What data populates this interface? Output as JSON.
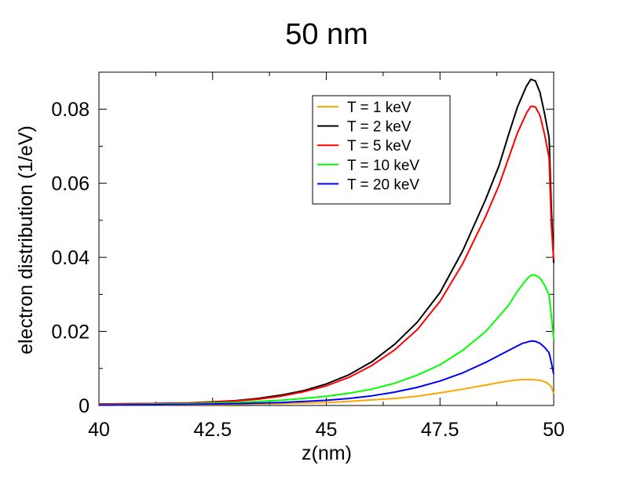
{
  "chart_data": {
    "type": "line",
    "title": "50 nm",
    "xlabel": "z(nm)",
    "ylabel": "electron distribution (1/eV)",
    "xlim": [
      40,
      50
    ],
    "ylim": [
      0,
      0.09
    ],
    "xticks": [
      {
        "value": 40,
        "label": "40"
      },
      {
        "value": 42.5,
        "label": "42.5"
      },
      {
        "value": 45,
        "label": "45"
      },
      {
        "value": 47.5,
        "label": "47.5"
      },
      {
        "value": 50,
        "label": "50"
      }
    ],
    "yticks": [
      {
        "value": 0,
        "label": "0"
      },
      {
        "value": 0.02,
        "label": "0.02"
      },
      {
        "value": 0.04,
        "label": "0.04"
      },
      {
        "value": 0.06,
        "label": "0.06"
      },
      {
        "value": 0.08,
        "label": "0.08"
      }
    ],
    "x_minor_step": 1.25,
    "y_minor_step": 0.01,
    "grid": false,
    "legend_position": "top-right",
    "series": [
      {
        "name": "T = 1 keV",
        "color": "#ffa500",
        "x": [
          40,
          42,
          43,
          44,
          45,
          45.5,
          46,
          46.5,
          47,
          47.5,
          48,
          48.5,
          49,
          49.3,
          49.5,
          49.7,
          49.85,
          49.95,
          50
        ],
        "y": [
          0.0001,
          0.0002,
          0.0003,
          0.0005,
          0.0008,
          0.0011,
          0.0015,
          0.0019,
          0.0025,
          0.0034,
          0.0044,
          0.0055,
          0.0066,
          0.007,
          0.007,
          0.0068,
          0.0062,
          0.005,
          0.0032
        ]
      },
      {
        "name": "T = 2 keV",
        "color": "#000000",
        "x": [
          40,
          41,
          42,
          43,
          43.5,
          44,
          44.5,
          45,
          45.5,
          46,
          46.5,
          47,
          47.5,
          48,
          48.5,
          48.8,
          49,
          49.2,
          49.4,
          49.5,
          49.6,
          49.7,
          49.8,
          49.9,
          49.95,
          50
        ],
        "y": [
          0.0004,
          0.0005,
          0.0007,
          0.0013,
          0.0019,
          0.0028,
          0.004,
          0.0058,
          0.0083,
          0.0118,
          0.0165,
          0.0225,
          0.0305,
          0.0418,
          0.0555,
          0.0648,
          0.0728,
          0.0805,
          0.0862,
          0.0881,
          0.0876,
          0.0845,
          0.0788,
          0.0723,
          0.0528,
          0.0385
        ]
      },
      {
        "name": "T = 5 keV",
        "color": "#ff0000",
        "x": [
          40,
          41,
          42,
          43,
          43.5,
          44,
          44.5,
          45,
          45.5,
          46,
          46.5,
          47,
          47.5,
          48,
          48.5,
          48.8,
          49,
          49.2,
          49.4,
          49.5,
          49.6,
          49.7,
          49.8,
          49.9,
          49.95,
          50
        ],
        "y": [
          0.0004,
          0.0005,
          0.0007,
          0.0012,
          0.0017,
          0.0025,
          0.0037,
          0.0053,
          0.0076,
          0.0108,
          0.015,
          0.0205,
          0.0281,
          0.0383,
          0.0509,
          0.0595,
          0.0665,
          0.0735,
          0.0789,
          0.0808,
          0.0806,
          0.0783,
          0.0732,
          0.0668,
          0.0485,
          0.0395
        ]
      },
      {
        "name": "T = 10 keV",
        "color": "#00ff00",
        "x": [
          40,
          41,
          42,
          43,
          44,
          44.5,
          45,
          45.5,
          46,
          46.5,
          47,
          47.5,
          48,
          48.5,
          49,
          49.2,
          49.4,
          49.5,
          49.6,
          49.7,
          49.8,
          49.9,
          49.95,
          50
        ],
        "y": [
          0.0002,
          0.0003,
          0.0005,
          0.0008,
          0.0014,
          0.0019,
          0.0025,
          0.0033,
          0.0044,
          0.006,
          0.0082,
          0.011,
          0.0149,
          0.0199,
          0.0269,
          0.0308,
          0.034,
          0.0352,
          0.0352,
          0.0344,
          0.0325,
          0.0298,
          0.024,
          0.0178
        ]
      },
      {
        "name": "T = 20 keV",
        "color": "#0000ff",
        "x": [
          40,
          41,
          42,
          43,
          44,
          45,
          45.5,
          46,
          46.5,
          47,
          47.5,
          48,
          48.5,
          49,
          49.3,
          49.5,
          49.6,
          49.7,
          49.8,
          49.9,
          49.95,
          50
        ],
        "y": [
          0.0001,
          0.0002,
          0.0003,
          0.0005,
          0.0008,
          0.0014,
          0.0019,
          0.0026,
          0.0036,
          0.0049,
          0.0066,
          0.0088,
          0.0116,
          0.0148,
          0.0167,
          0.0174,
          0.0173,
          0.0168,
          0.0157,
          0.0142,
          0.0115,
          0.0085
        ]
      }
    ]
  }
}
